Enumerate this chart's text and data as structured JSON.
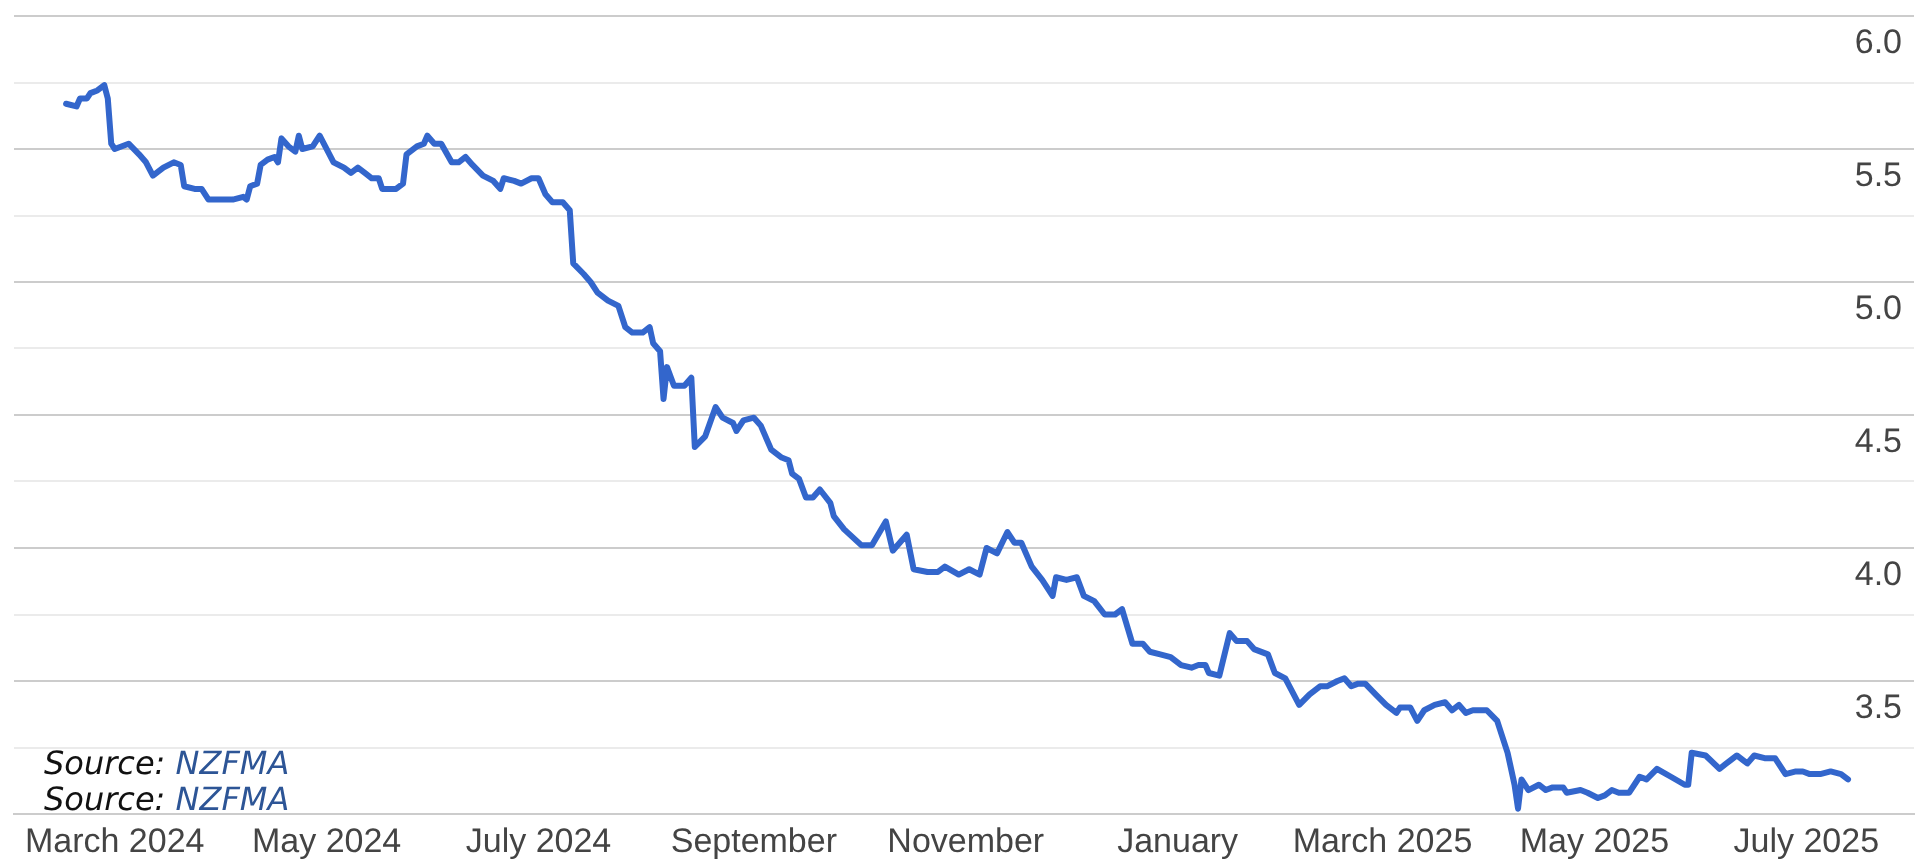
{
  "chart_data": {
    "type": "line",
    "color": "#3366cc",
    "grid": "y",
    "annotations": [
      "Source: NZFMA",
      "Source: NZFMA"
    ],
    "xlim": [
      "2024-02-01",
      "2025-08-01"
    ],
    "xticks": [
      {
        "value": "2024-03",
        "label": "March 2024"
      },
      {
        "value": "2024-05",
        "label": "May 2024"
      },
      {
        "value": "2024-07",
        "label": "July 2024"
      },
      {
        "value": "2024-09",
        "label": "September"
      },
      {
        "value": "2024-11",
        "label": "November"
      },
      {
        "value": "2025-01",
        "label": "January"
      },
      {
        "value": "2025-03",
        "label": "March 2025"
      },
      {
        "value": "2025-05",
        "label": "May 2025"
      },
      {
        "value": "2025-07",
        "label": "July 2025"
      }
    ],
    "ylim": [
      3,
      6
    ],
    "yticks": [
      {
        "value": 6,
        "label": "6.0"
      },
      {
        "value": 5.75,
        "label": null
      },
      {
        "value": 5.5,
        "label": "5.5"
      },
      {
        "value": 5.25,
        "label": null
      },
      {
        "value": 5,
        "label": "5.0"
      },
      {
        "value": 4.75,
        "label": null
      },
      {
        "value": 4.5,
        "label": "4.5"
      },
      {
        "value": 4.25,
        "label": null
      },
      {
        "value": 4,
        "label": "4.0"
      },
      {
        "value": 3.75,
        "label": null
      },
      {
        "value": 3.5,
        "label": "3.5"
      },
      {
        "value": 3.25,
        "label": null
      }
    ],
    "x": [
      "2024-02-16",
      "2024-02-19",
      "2024-02-20",
      "2024-02-22",
      "2024-02-23",
      "2024-02-25",
      "2024-02-27",
      "2024-02-28",
      "2024-02-29",
      "2024-03-01",
      "2024-03-05",
      "2024-03-08",
      "2024-03-10",
      "2024-03-12",
      "2024-03-15",
      "2024-03-18",
      "2024-03-20",
      "2024-03-21",
      "2024-03-24",
      "2024-03-26",
      "2024-03-28",
      "2024-04-01",
      "2024-04-04",
      "2024-04-07",
      "2024-04-08",
      "2024-04-09",
      "2024-04-11",
      "2024-04-12",
      "2024-04-14",
      "2024-04-16",
      "2024-04-17",
      "2024-04-18",
      "2024-04-20",
      "2024-04-22",
      "2024-04-23",
      "2024-04-24",
      "2024-04-27",
      "2024-04-29",
      "2024-05-03",
      "2024-05-06",
      "2024-05-08",
      "2024-05-10",
      "2024-05-12",
      "2024-05-14",
      "2024-05-16",
      "2024-05-17",
      "2024-05-21",
      "2024-05-23",
      "2024-05-24",
      "2024-05-27",
      "2024-05-29",
      "2024-05-30",
      "2024-06-01",
      "2024-06-03",
      "2024-06-06",
      "2024-06-08",
      "2024-06-10",
      "2024-06-12",
      "2024-06-15",
      "2024-06-18",
      "2024-06-20",
      "2024-06-21",
      "2024-06-24",
      "2024-06-26",
      "2024-06-29",
      "2024-07-01",
      "2024-07-03",
      "2024-07-05",
      "2024-07-08",
      "2024-07-10",
      "2024-07-11",
      "2024-07-14",
      "2024-07-16",
      "2024-07-18",
      "2024-07-21",
      "2024-07-24",
      "2024-07-26",
      "2024-07-28",
      "2024-07-31",
      "2024-08-02",
      "2024-08-03",
      "2024-08-05",
      "2024-08-06",
      "2024-08-07",
      "2024-08-09",
      "2024-08-12",
      "2024-08-14",
      "2024-08-15",
      "2024-08-18",
      "2024-08-21",
      "2024-08-23",
      "2024-08-26",
      "2024-08-27",
      "2024-08-29",
      "2024-09-01",
      "2024-09-03",
      "2024-09-06",
      "2024-09-09",
      "2024-09-11",
      "2024-09-12",
      "2024-09-14",
      "2024-09-16",
      "2024-09-18",
      "2024-09-20",
      "2024-09-23",
      "2024-09-24",
      "2024-09-27",
      "2024-10-02",
      "2024-10-05",
      "2024-10-09",
      "2024-10-11",
      "2024-10-15",
      "2024-10-17",
      "2024-10-21",
      "2024-10-24",
      "2024-10-26",
      "2024-10-30",
      "2024-11-02",
      "2024-11-05",
      "2024-11-07",
      "2024-11-10",
      "2024-11-13",
      "2024-11-15",
      "2024-11-17",
      "2024-11-20",
      "2024-11-23",
      "2024-11-26",
      "2024-11-27",
      "2024-11-30",
      "2024-12-03",
      "2024-12-05",
      "2024-12-08",
      "2024-12-11",
      "2024-12-14",
      "2024-12-16",
      "2024-12-19",
      "2024-12-22",
      "2024-12-24",
      "2024-12-27",
      "2024-12-30",
      "2025-01-02",
      "2025-01-05",
      "2025-01-07",
      "2025-01-09",
      "2025-01-10",
      "2025-01-13",
      "2025-01-16",
      "2025-01-18",
      "2025-01-21",
      "2025-01-23",
      "2025-01-27",
      "2025-01-29",
      "2025-02-01",
      "2025-02-05",
      "2025-02-08",
      "2025-02-11",
      "2025-02-13",
      "2025-02-16",
      "2025-02-18",
      "2025-02-20",
      "2025-02-22",
      "2025-02-24",
      "2025-02-27",
      "2025-03-02",
      "2025-03-05",
      "2025-03-06",
      "2025-03-09",
      "2025-03-11",
      "2025-03-13",
      "2025-03-16",
      "2025-03-19",
      "2025-03-21",
      "2025-03-23",
      "2025-03-25",
      "2025-03-27",
      "2025-03-31",
      "2025-04-03",
      "2025-04-06",
      "2025-04-08",
      "2025-04-09",
      "2025-04-10",
      "2025-04-12",
      "2025-04-15",
      "2025-04-17",
      "2025-04-19",
      "2025-04-22",
      "2025-04-23",
      "2025-04-27",
      "2025-04-29",
      "2025-05-02",
      "2025-05-04",
      "2025-05-06",
      "2025-05-08",
      "2025-05-11",
      "2025-05-14",
      "2025-05-16",
      "2025-05-19",
      "2025-05-23",
      "2025-05-27",
      "2025-05-28",
      "2025-05-29",
      "2025-06-02",
      "2025-06-06",
      "2025-06-08",
      "2025-06-11",
      "2025-06-14",
      "2025-06-16",
      "2025-06-19",
      "2025-06-22",
      "2025-06-25",
      "2025-06-28",
      "2025-06-30",
      "2025-07-02",
      "2025-07-05",
      "2025-07-08",
      "2025-07-11",
      "2025-07-13"
    ],
    "values": [
      5.67,
      5.66,
      5.69,
      5.69,
      5.71,
      5.72,
      5.74,
      5.69,
      5.52,
      5.5,
      5.52,
      5.48,
      5.45,
      5.4,
      5.43,
      5.45,
      5.44,
      5.36,
      5.35,
      5.35,
      5.31,
      5.31,
      5.31,
      5.32,
      5.31,
      5.36,
      5.37,
      5.44,
      5.46,
      5.47,
      5.45,
      5.54,
      5.51,
      5.49,
      5.55,
      5.5,
      5.51,
      5.55,
      5.45,
      5.43,
      5.41,
      5.43,
      5.41,
      5.39,
      5.39,
      5.35,
      5.35,
      5.37,
      5.48,
      5.51,
      5.52,
      5.55,
      5.52,
      5.52,
      5.45,
      5.45,
      5.47,
      5.44,
      5.4,
      5.38,
      5.35,
      5.39,
      5.38,
      5.37,
      5.39,
      5.39,
      5.33,
      5.3,
      5.3,
      5.27,
      5.07,
      5.03,
      5.0,
      4.96,
      4.93,
      4.91,
      4.83,
      4.81,
      4.81,
      4.83,
      4.77,
      4.74,
      4.56,
      4.68,
      4.61,
      4.61,
      4.64,
      4.38,
      4.42,
      4.53,
      4.49,
      4.47,
      4.44,
      4.48,
      4.49,
      4.46,
      4.37,
      4.34,
      4.33,
      4.28,
      4.26,
      4.19,
      4.19,
      4.22,
      4.17,
      4.12,
      4.07,
      4.01,
      4.01,
      4.1,
      3.99,
      4.05,
      3.92,
      3.91,
      3.91,
      3.93,
      3.9,
      3.92,
      3.9,
      4.0,
      3.98,
      4.06,
      4.02,
      4.02,
      3.93,
      3.88,
      3.82,
      3.89,
      3.88,
      3.89,
      3.82,
      3.8,
      3.75,
      3.75,
      3.77,
      3.64,
      3.64,
      3.61,
      3.6,
      3.59,
      3.56,
      3.55,
      3.56,
      3.56,
      3.53,
      3.52,
      3.68,
      3.65,
      3.65,
      3.62,
      3.6,
      3.53,
      3.51,
      3.41,
      3.45,
      3.48,
      3.48,
      3.5,
      3.51,
      3.48,
      3.49,
      3.49,
      3.45,
      3.41,
      3.38,
      3.4,
      3.4,
      3.35,
      3.39,
      3.41,
      3.42,
      3.39,
      3.41,
      3.38,
      3.39,
      3.39,
      3.35,
      3.23,
      3.11,
      3.02,
      3.13,
      3.09,
      3.11,
      3.09,
      3.1,
      3.1,
      3.08,
      3.09,
      3.08,
      3.06,
      3.07,
      3.09,
      3.08,
      3.08,
      3.14,
      3.13,
      3.17,
      3.14,
      3.11,
      3.11,
      3.23,
      3.22,
      3.17,
      3.19,
      3.22,
      3.19,
      3.22,
      3.21,
      3.21,
      3.15,
      3.16,
      3.16,
      3.15,
      3.15,
      3.16,
      3.15,
      3.13
    ]
  }
}
